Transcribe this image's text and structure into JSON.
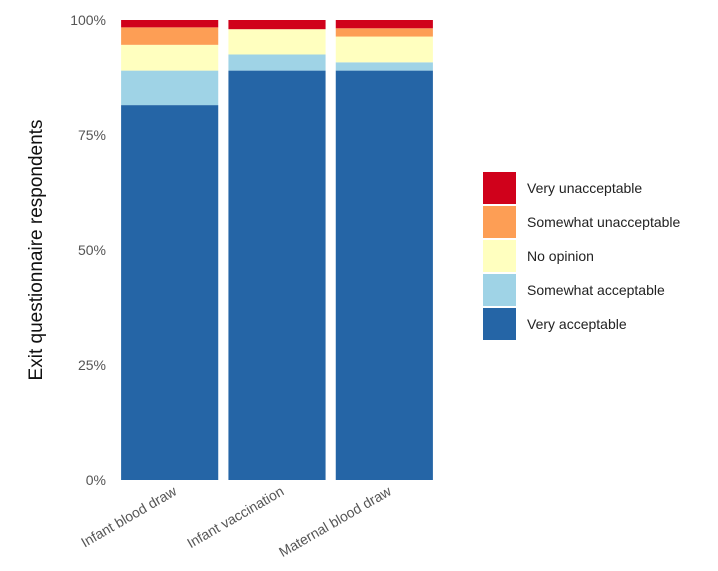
{
  "chart_data": {
    "type": "bar",
    "stacked": true,
    "ylabel": "Exit questionnaire respondents",
    "xlabel": "",
    "y_tick_labels": [
      "0%",
      "25%",
      "50%",
      "75%",
      "100%"
    ],
    "ylim": [
      0,
      100
    ],
    "grid": false,
    "legend_position": "right",
    "categories": [
      "Infant blood draw",
      "Infant vaccination",
      "Maternal blood draw"
    ],
    "series": [
      {
        "name": "Very acceptable",
        "color": "#2565a6",
        "values": [
          81.5,
          89,
          89
        ]
      },
      {
        "name": "Somewhat acceptable",
        "color": "#9fd3e6",
        "values": [
          7.5,
          3.5,
          1.8
        ]
      },
      {
        "name": "No opinion",
        "color": "#ffffbf",
        "values": [
          5.6,
          5.5,
          5.6
        ]
      },
      {
        "name": "Somewhat unacceptable",
        "color": "#fd9e55",
        "values": [
          3.8,
          0,
          1.8
        ]
      },
      {
        "name": "Very unacceptable",
        "color": "#d0011b",
        "values": [
          1.6,
          2,
          1.8
        ]
      }
    ]
  }
}
